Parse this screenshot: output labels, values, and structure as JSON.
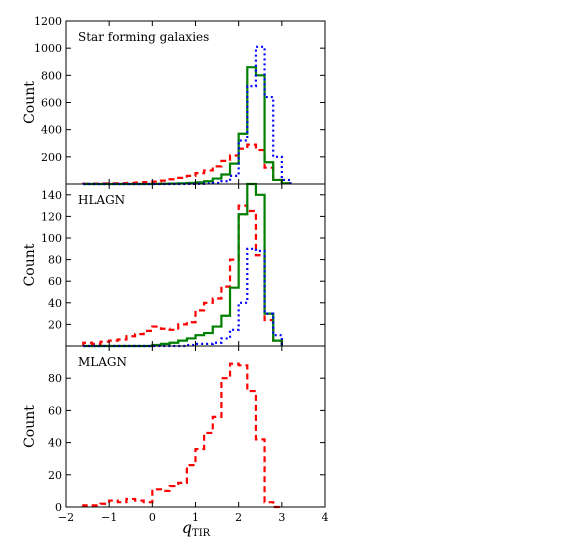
{
  "chart_data": [
    {
      "type": "histogram",
      "panel_label": "Star forming galaxies",
      "ylabel": "Count",
      "xlabel": "",
      "xlim": [
        -2,
        4
      ],
      "ylim": [
        0,
        1200
      ],
      "y_ticks": [
        "200",
        "400",
        "600",
        "800",
        "1000",
        "1200"
      ],
      "bin_edges": [
        -1.6,
        -1.4,
        -1.2,
        -1.0,
        -0.8,
        -0.6,
        -0.4,
        -0.2,
        0.0,
        0.2,
        0.4,
        0.6,
        0.8,
        1.0,
        1.2,
        1.4,
        1.6,
        1.8,
        2.0,
        2.2,
        2.4,
        2.6,
        2.8,
        3.0,
        3.2
      ],
      "series": [
        {
          "color": "#ff0000",
          "dash": "dashed",
          "values": [
            2,
            3,
            4,
            5,
            6,
            8,
            10,
            14,
            18,
            25,
            35,
            45,
            60,
            80,
            100,
            130,
            170,
            210,
            260,
            290,
            250,
            120,
            30,
            5
          ]
        },
        {
          "color": "#008000",
          "dash": "solid",
          "values": [
            0,
            0,
            0,
            0,
            0,
            0,
            0,
            0,
            1,
            2,
            3,
            5,
            8,
            12,
            20,
            40,
            70,
            150,
            370,
            860,
            800,
            160,
            30,
            5
          ]
        },
        {
          "color": "#0000ff",
          "dash": "dotted",
          "values": [
            0,
            0,
            0,
            0,
            0,
            0,
            0,
            0,
            0,
            0,
            0,
            0,
            1,
            2,
            4,
            8,
            20,
            60,
            320,
            720,
            1010,
            640,
            200,
            30
          ]
        }
      ]
    },
    {
      "type": "histogram",
      "panel_label": "HLAGN",
      "ylabel": "Count",
      "xlabel": "",
      "xlim": [
        -2,
        4
      ],
      "ylim": [
        0,
        150
      ],
      "y_ticks": [
        "20",
        "40",
        "60",
        "80",
        "100",
        "120",
        "140"
      ],
      "bin_edges": [
        -1.6,
        -1.4,
        -1.2,
        -1.0,
        -0.8,
        -0.6,
        -0.4,
        -0.2,
        0.0,
        0.2,
        0.4,
        0.6,
        0.8,
        1.0,
        1.2,
        1.4,
        1.6,
        1.8,
        2.0,
        2.2,
        2.4,
        2.6,
        2.8,
        3.0
      ],
      "series": [
        {
          "color": "#ff0000",
          "dash": "dashed",
          "values": [
            3,
            2,
            4,
            5,
            6,
            9,
            11,
            14,
            18,
            16,
            15,
            20,
            22,
            33,
            40,
            44,
            55,
            80,
            130,
            125,
            84,
            24,
            5
          ]
        },
        {
          "color": "#008000",
          "dash": "solid",
          "values": [
            0,
            0,
            0,
            0,
            0,
            0,
            0,
            0,
            1,
            2,
            3,
            5,
            7,
            10,
            12,
            18,
            28,
            54,
            122,
            150,
            140,
            30,
            5
          ]
        },
        {
          "color": "#0000ff",
          "dash": "dotted",
          "values": [
            0,
            0,
            0,
            0,
            0,
            0,
            0,
            0,
            0,
            0,
            0,
            0,
            1,
            2,
            2,
            3,
            7,
            15,
            40,
            90,
            88,
            30,
            10
          ]
        }
      ]
    },
    {
      "type": "histogram",
      "panel_label": "MLAGN",
      "ylabel": "Count",
      "xlabel": "q_TIR",
      "xlim": [
        -2,
        4
      ],
      "ylim": [
        0,
        100
      ],
      "y_ticks": [
        "0",
        "20",
        "40",
        "60",
        "80"
      ],
      "x_ticks": [
        "−2",
        "−1",
        "0",
        "1",
        "2",
        "3",
        "4"
      ],
      "bin_edges": [
        -1.6,
        -1.4,
        -1.2,
        -1.0,
        -0.8,
        -0.6,
        -0.4,
        -0.2,
        0.0,
        0.2,
        0.4,
        0.6,
        0.8,
        1.0,
        1.2,
        1.4,
        1.6,
        1.8,
        2.0,
        2.2,
        2.4,
        2.6,
        2.8,
        3.0
      ],
      "series": [
        {
          "color": "#ff0000",
          "dash": "dashed",
          "values": [
            1,
            1,
            2,
            4,
            3,
            5,
            4,
            3,
            11,
            10,
            13,
            15,
            26,
            36,
            46,
            56,
            80,
            89,
            88,
            72,
            42,
            3,
            0
          ]
        }
      ]
    }
  ]
}
